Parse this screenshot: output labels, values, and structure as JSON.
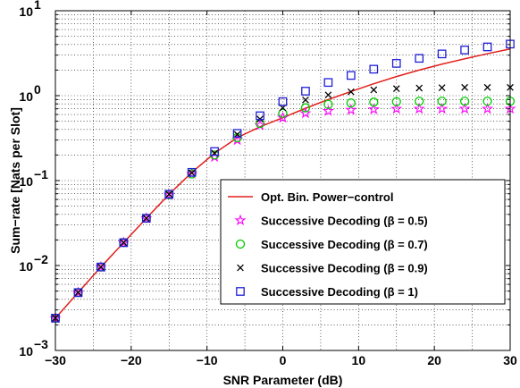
{
  "chart_data": {
    "type": "line",
    "xlabel": "SNR Parameter (dB)",
    "ylabel": "Sum−rate [Nats per Slot]",
    "x_ticks": [
      "−30",
      "−20",
      "−10",
      "0",
      "10",
      "20",
      "30"
    ],
    "y_ticks": [
      "10",
      "10",
      "10",
      "10",
      "10"
    ],
    "y_tick_exponents": [
      "−3",
      "−2",
      "−1",
      "0",
      "1"
    ],
    "xlim": [
      -30,
      30
    ],
    "ylim": [
      0.001,
      10
    ],
    "yscale": "log",
    "grid": true,
    "legend_position": "bottom-right",
    "series": [
      {
        "name": "Opt. Bin. Power−control",
        "style": "line",
        "color": "#e0201b",
        "x": [
          -30,
          -27,
          -24,
          -21,
          -18,
          -15,
          -12,
          -9,
          -6,
          -3,
          0,
          3,
          6,
          9,
          12,
          15,
          18,
          21,
          24,
          27,
          30
        ],
        "y": [
          0.0024,
          0.0048,
          0.0096,
          0.0186,
          0.036,
          0.069,
          0.125,
          0.21,
          0.32,
          0.43,
          0.55,
          0.71,
          0.9,
          1.12,
          1.38,
          1.68,
          2.0,
          2.35,
          2.72,
          3.12,
          3.55
        ]
      },
      {
        "name": "Successive Decoding (β = 0.5)",
        "style": "marker",
        "marker": "star",
        "color": "#ff00ff",
        "x": [
          -30,
          -27,
          -24,
          -21,
          -18,
          -15,
          -12,
          -9,
          -6,
          -3,
          0,
          3,
          6,
          9,
          12,
          15,
          18,
          21,
          24,
          27,
          30
        ],
        "y": [
          0.0024,
          0.0048,
          0.0096,
          0.0186,
          0.036,
          0.068,
          0.12,
          0.19,
          0.3,
          0.45,
          0.55,
          0.62,
          0.66,
          0.68,
          0.69,
          0.7,
          0.7,
          0.7,
          0.7,
          0.7,
          0.7
        ]
      },
      {
        "name": "Successive Decoding (β = 0.7)",
        "style": "marker",
        "marker": "circle",
        "color": "#00cc00",
        "x": [
          -30,
          -27,
          -24,
          -21,
          -18,
          -15,
          -12,
          -9,
          -6,
          -3,
          0,
          3,
          6,
          9,
          12,
          15,
          18,
          21,
          24,
          27,
          30
        ],
        "y": [
          0.0024,
          0.0048,
          0.0096,
          0.0186,
          0.036,
          0.068,
          0.12,
          0.2,
          0.32,
          0.47,
          0.62,
          0.72,
          0.79,
          0.82,
          0.84,
          0.85,
          0.86,
          0.86,
          0.86,
          0.86,
          0.86
        ]
      },
      {
        "name": "Successive Decoding (β = 0.9)",
        "style": "marker",
        "marker": "x",
        "color": "#000000",
        "x": [
          -30,
          -27,
          -24,
          -21,
          -18,
          -15,
          -12,
          -9,
          -6,
          -3,
          0,
          3,
          6,
          9,
          12,
          15,
          18,
          21,
          24,
          27,
          30
        ],
        "y": [
          0.0024,
          0.0048,
          0.0096,
          0.0186,
          0.036,
          0.069,
          0.123,
          0.21,
          0.35,
          0.53,
          0.72,
          0.89,
          1.02,
          1.11,
          1.17,
          1.21,
          1.23,
          1.24,
          1.25,
          1.25,
          1.25
        ]
      },
      {
        "name": "Successive Decoding (β = 1)",
        "style": "marker",
        "marker": "square",
        "color": "#1f1fd8",
        "x": [
          -30,
          -27,
          -24,
          -21,
          -18,
          -15,
          -12,
          -9,
          -6,
          -3,
          0,
          3,
          6,
          9,
          12,
          15,
          18,
          21,
          24,
          27,
          30
        ],
        "y": [
          0.0024,
          0.0048,
          0.0096,
          0.0186,
          0.036,
          0.069,
          0.125,
          0.22,
          0.36,
          0.58,
          0.85,
          1.13,
          1.43,
          1.73,
          2.05,
          2.4,
          2.75,
          3.1,
          3.45,
          3.75,
          4.05
        ]
      }
    ]
  }
}
